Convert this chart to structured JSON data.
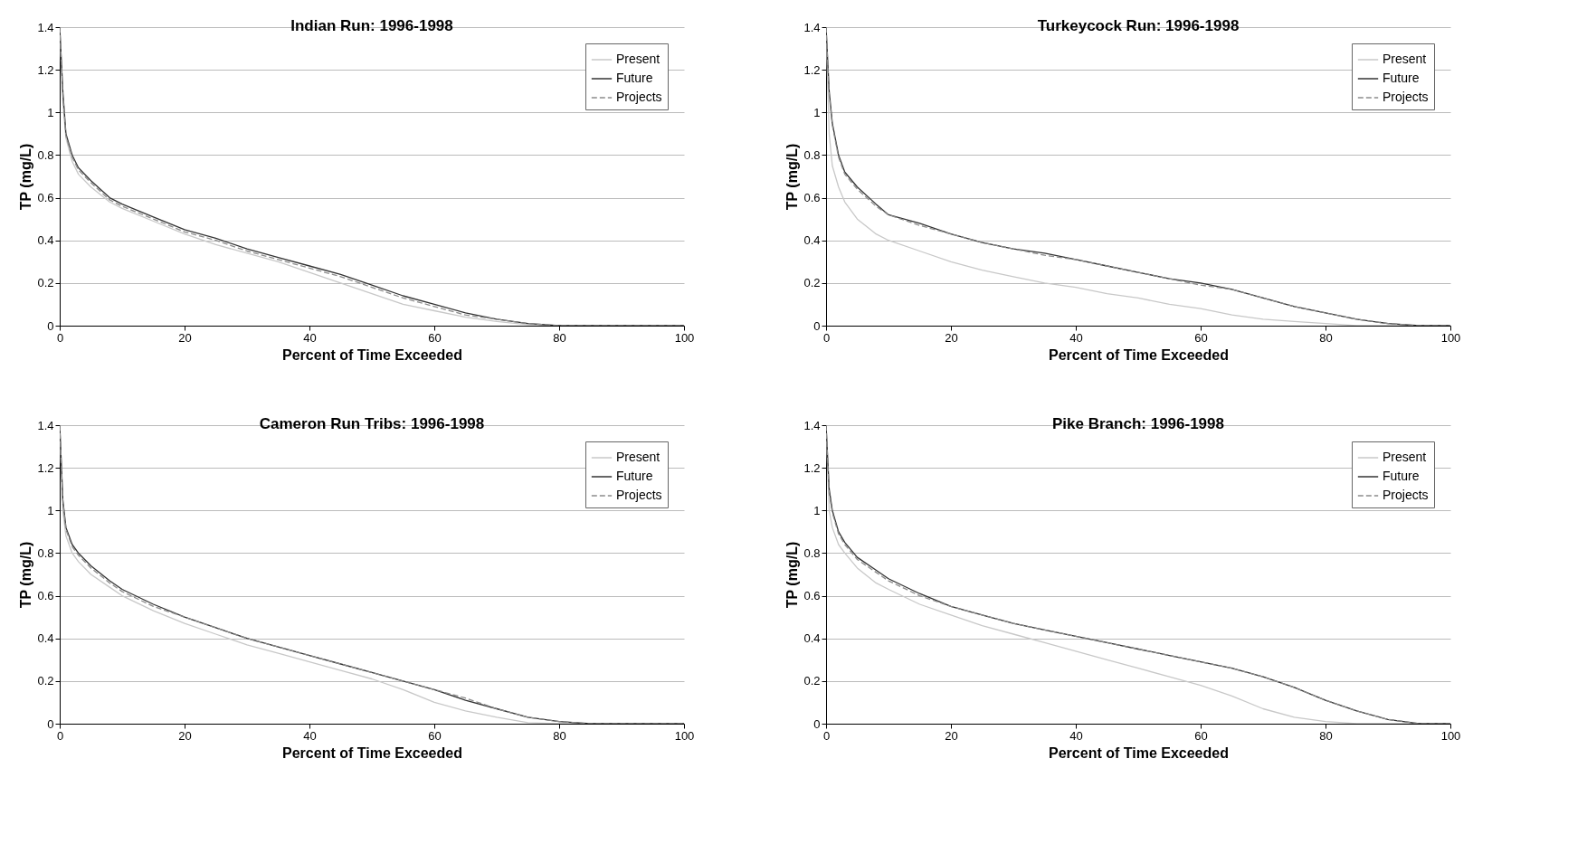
{
  "chart_data": [
    {
      "type": "line",
      "title": "Indian Run: 1996-1998",
      "xlabel": "Percent of Time Exceeded",
      "ylabel": "TP (mg/L)",
      "xlim": [
        0,
        100
      ],
      "xticks": [
        0,
        20,
        40,
        60,
        80,
        100
      ],
      "ylim": [
        0,
        1.4
      ],
      "yticks": [
        0,
        0.2,
        0.4,
        0.6,
        0.8,
        1,
        1.2,
        1.4
      ],
      "grid": "y",
      "legend": "top right",
      "x": [
        0,
        0.5,
        1,
        2,
        3,
        5,
        8,
        10,
        15,
        20,
        25,
        30,
        35,
        40,
        45,
        50,
        55,
        60,
        65,
        70,
        75,
        80,
        85,
        90,
        95,
        100
      ],
      "series": [
        {
          "name": "Present",
          "color": "#c8c8c8",
          "line_style": "solid",
          "values": [
            1.4,
            1.05,
            0.88,
            0.77,
            0.71,
            0.65,
            0.58,
            0.55,
            0.49,
            0.43,
            0.38,
            0.34,
            0.3,
            0.25,
            0.2,
            0.15,
            0.1,
            0.07,
            0.04,
            0.02,
            0.005,
            0,
            0,
            0,
            0,
            0
          ]
        },
        {
          "name": "Future",
          "color": "#333333",
          "line_style": "solid",
          "values": [
            1.4,
            1.1,
            0.9,
            0.8,
            0.74,
            0.68,
            0.6,
            0.57,
            0.51,
            0.45,
            0.41,
            0.36,
            0.32,
            0.28,
            0.24,
            0.19,
            0.14,
            0.1,
            0.06,
            0.03,
            0.01,
            0,
            0,
            0,
            0,
            0
          ]
        },
        {
          "name": "Projects",
          "color": "#8c8c8c",
          "line_style": "dashed",
          "values": [
            1.4,
            1.08,
            0.89,
            0.79,
            0.73,
            0.67,
            0.59,
            0.56,
            0.5,
            0.44,
            0.4,
            0.35,
            0.31,
            0.27,
            0.23,
            0.18,
            0.13,
            0.09,
            0.05,
            0.03,
            0.01,
            0,
            0,
            0,
            0,
            0
          ]
        }
      ]
    },
    {
      "type": "line",
      "title": "Turkeycock Run: 1996-1998",
      "xlabel": "Percent of Time Exceeded",
      "ylabel": "TP (mg/L)",
      "xlim": [
        0,
        100
      ],
      "xticks": [
        0,
        20,
        40,
        60,
        80,
        100
      ],
      "ylim": [
        0,
        1.4
      ],
      "yticks": [
        0,
        0.2,
        0.4,
        0.6,
        0.8,
        1,
        1.2,
        1.4
      ],
      "grid": "y",
      "legend": "top right",
      "x": [
        0,
        0.5,
        1,
        2,
        3,
        5,
        8,
        10,
        15,
        20,
        25,
        30,
        35,
        40,
        45,
        50,
        55,
        60,
        65,
        70,
        75,
        80,
        85,
        90,
        95,
        100
      ],
      "series": [
        {
          "name": "Present",
          "color": "#c8c8c8",
          "line_style": "solid",
          "values": [
            1.4,
            0.9,
            0.75,
            0.65,
            0.58,
            0.5,
            0.43,
            0.4,
            0.35,
            0.3,
            0.26,
            0.23,
            0.2,
            0.18,
            0.15,
            0.13,
            0.1,
            0.08,
            0.05,
            0.03,
            0.02,
            0.01,
            0,
            0,
            0,
            0
          ]
        },
        {
          "name": "Future",
          "color": "#333333",
          "line_style": "solid",
          "values": [
            1.4,
            1.1,
            0.95,
            0.8,
            0.72,
            0.65,
            0.57,
            0.52,
            0.48,
            0.43,
            0.39,
            0.36,
            0.34,
            0.31,
            0.28,
            0.25,
            0.22,
            0.2,
            0.17,
            0.13,
            0.09,
            0.06,
            0.03,
            0.01,
            0,
            0
          ]
        },
        {
          "name": "Projects",
          "color": "#8c8c8c",
          "line_style": "dashed",
          "values": [
            1.4,
            1.08,
            0.94,
            0.79,
            0.71,
            0.64,
            0.56,
            0.52,
            0.47,
            0.43,
            0.39,
            0.36,
            0.33,
            0.31,
            0.28,
            0.25,
            0.22,
            0.19,
            0.17,
            0.13,
            0.09,
            0.06,
            0.03,
            0.01,
            0,
            0
          ]
        }
      ]
    },
    {
      "type": "line",
      "title": "Cameron Run Tribs: 1996-1998",
      "xlabel": "Percent of Time Exceeded",
      "ylabel": "TP (mg/L)",
      "xlim": [
        0,
        100
      ],
      "xticks": [
        0,
        20,
        40,
        60,
        80,
        100
      ],
      "ylim": [
        0,
        1.4
      ],
      "yticks": [
        0,
        0.2,
        0.4,
        0.6,
        0.8,
        1,
        1.2,
        1.4
      ],
      "grid": "y",
      "legend": "top right",
      "x": [
        0,
        0.5,
        1,
        2,
        3,
        5,
        8,
        10,
        15,
        20,
        25,
        30,
        35,
        40,
        45,
        50,
        55,
        60,
        65,
        70,
        75,
        80,
        85,
        90,
        95,
        100
      ],
      "series": [
        {
          "name": "Present",
          "color": "#c8c8c8",
          "line_style": "solid",
          "values": [
            1.4,
            1.0,
            0.88,
            0.8,
            0.76,
            0.7,
            0.64,
            0.6,
            0.53,
            0.47,
            0.42,
            0.37,
            0.33,
            0.29,
            0.25,
            0.21,
            0.16,
            0.1,
            0.06,
            0.03,
            0.005,
            0,
            0,
            0,
            0,
            0
          ]
        },
        {
          "name": "Future",
          "color": "#333333",
          "line_style": "solid",
          "values": [
            1.4,
            1.05,
            0.92,
            0.84,
            0.8,
            0.74,
            0.67,
            0.63,
            0.56,
            0.5,
            0.45,
            0.4,
            0.36,
            0.32,
            0.28,
            0.24,
            0.2,
            0.16,
            0.11,
            0.07,
            0.03,
            0.01,
            0,
            0,
            0,
            0
          ]
        },
        {
          "name": "Projects",
          "color": "#8c8c8c",
          "line_style": "dashed",
          "values": [
            1.4,
            1.04,
            0.91,
            0.83,
            0.79,
            0.73,
            0.66,
            0.62,
            0.55,
            0.5,
            0.45,
            0.4,
            0.36,
            0.32,
            0.28,
            0.24,
            0.2,
            0.16,
            0.12,
            0.07,
            0.03,
            0.01,
            0,
            0,
            0,
            0
          ]
        }
      ]
    },
    {
      "type": "line",
      "title": "Pike Branch: 1996-1998",
      "xlabel": "Percent of Time Exceeded",
      "ylabel": "TP (mg/L)",
      "xlim": [
        0,
        100
      ],
      "xticks": [
        0,
        20,
        40,
        60,
        80,
        100
      ],
      "ylim": [
        0,
        1.4
      ],
      "yticks": [
        0,
        0.2,
        0.4,
        0.6,
        0.8,
        1,
        1.2,
        1.4
      ],
      "grid": "y",
      "legend": "top right",
      "x": [
        0,
        0.5,
        1,
        2,
        3,
        5,
        8,
        10,
        15,
        20,
        25,
        30,
        35,
        40,
        45,
        50,
        55,
        60,
        65,
        70,
        75,
        80,
        85,
        90,
        95,
        100
      ],
      "series": [
        {
          "name": "Present",
          "color": "#c8c8c8",
          "line_style": "solid",
          "values": [
            1.4,
            1.0,
            0.92,
            0.84,
            0.8,
            0.73,
            0.66,
            0.63,
            0.56,
            0.51,
            0.46,
            0.42,
            0.38,
            0.34,
            0.3,
            0.26,
            0.22,
            0.18,
            0.13,
            0.07,
            0.03,
            0.01,
            0,
            0,
            0,
            0
          ]
        },
        {
          "name": "Future",
          "color": "#333333",
          "line_style": "solid",
          "values": [
            1.4,
            1.1,
            1.0,
            0.9,
            0.85,
            0.78,
            0.72,
            0.68,
            0.61,
            0.55,
            0.51,
            0.47,
            0.44,
            0.41,
            0.38,
            0.35,
            0.32,
            0.29,
            0.26,
            0.22,
            0.17,
            0.11,
            0.06,
            0.02,
            0,
            0
          ]
        },
        {
          "name": "Projects",
          "color": "#8c8c8c",
          "line_style": "dashed",
          "values": [
            1.4,
            1.08,
            0.99,
            0.89,
            0.84,
            0.77,
            0.71,
            0.67,
            0.6,
            0.55,
            0.51,
            0.47,
            0.44,
            0.41,
            0.38,
            0.35,
            0.32,
            0.29,
            0.26,
            0.22,
            0.17,
            0.11,
            0.06,
            0.02,
            0,
            0
          ]
        }
      ]
    }
  ]
}
